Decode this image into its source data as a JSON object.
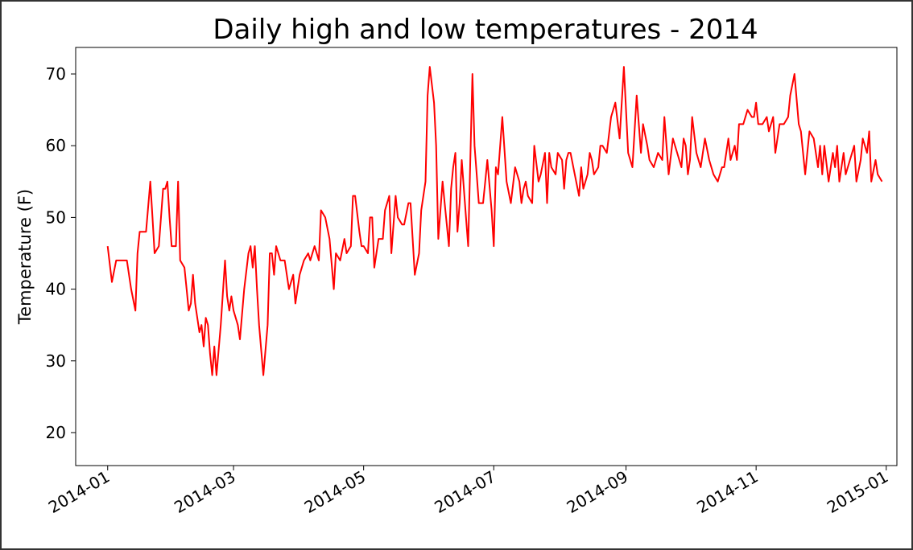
{
  "chart_data": {
    "type": "line",
    "title": "Daily high and low temperatures - 2014",
    "xlabel": "",
    "ylabel": "Temperature (F)",
    "x_ticks": [
      "2014-01",
      "2014-03",
      "2014-05",
      "2014-07",
      "2014-09",
      "2014-11",
      "2015-01"
    ],
    "y_ticks": [
      20,
      30,
      40,
      50,
      60,
      70
    ],
    "xlim": [
      "2013-12-17",
      "2015-01-06"
    ],
    "ylim": [
      15.4,
      73.7
    ],
    "grid": false,
    "fill_between": {
      "color": "#0000ff",
      "alpha": 0.1
    },
    "series": [
      {
        "color": "#ff0000",
        "points": [
          [
            "2014-01-01",
            46
          ],
          [
            "2014-01-03",
            41
          ],
          [
            "2014-01-05",
            44
          ],
          [
            "2014-01-07",
            44
          ],
          [
            "2014-01-10",
            44
          ],
          [
            "2014-01-12",
            40
          ],
          [
            "2014-01-14",
            37
          ],
          [
            "2014-01-15",
            45
          ],
          [
            "2014-01-16",
            48
          ],
          [
            "2014-01-19",
            48
          ],
          [
            "2014-01-21",
            55
          ],
          [
            "2014-01-22",
            50
          ],
          [
            "2014-01-23",
            45
          ],
          [
            "2014-01-25",
            46
          ],
          [
            "2014-01-27",
            54
          ],
          [
            "2014-01-28",
            54
          ],
          [
            "2014-01-29",
            55
          ],
          [
            "2014-01-30",
            50
          ],
          [
            "2014-01-31",
            46
          ],
          [
            "2014-02-02",
            46
          ],
          [
            "2014-02-03",
            55
          ],
          [
            "2014-02-04",
            44
          ],
          [
            "2014-02-06",
            43
          ],
          [
            "2014-02-07",
            40
          ],
          [
            "2014-02-08",
            37
          ],
          [
            "2014-02-09",
            38
          ],
          [
            "2014-02-10",
            42
          ],
          [
            "2014-02-11",
            38
          ],
          [
            "2014-02-13",
            34
          ],
          [
            "2014-02-14",
            35
          ],
          [
            "2014-02-15",
            32
          ],
          [
            "2014-02-16",
            36
          ],
          [
            "2014-02-17",
            35
          ],
          [
            "2014-02-18",
            31
          ],
          [
            "2014-02-19",
            28
          ],
          [
            "2014-02-20",
            32
          ],
          [
            "2014-02-21",
            28
          ],
          [
            "2014-02-23",
            35
          ],
          [
            "2014-02-25",
            44
          ],
          [
            "2014-02-26",
            39
          ],
          [
            "2014-02-27",
            37
          ],
          [
            "2014-02-28",
            39
          ],
          [
            "2014-03-01",
            37
          ],
          [
            "2014-03-03",
            35
          ],
          [
            "2014-03-04",
            33
          ],
          [
            "2014-03-06",
            40
          ],
          [
            "2014-03-08",
            45
          ],
          [
            "2014-03-09",
            46
          ],
          [
            "2014-03-10",
            43
          ],
          [
            "2014-03-11",
            46
          ],
          [
            "2014-03-12",
            40
          ],
          [
            "2014-03-13",
            35
          ],
          [
            "2014-03-15",
            28
          ],
          [
            "2014-03-17",
            35
          ],
          [
            "2014-03-18",
            45
          ],
          [
            "2014-03-19",
            45
          ],
          [
            "2014-03-20",
            42
          ],
          [
            "2014-03-21",
            46
          ],
          [
            "2014-03-22",
            45
          ],
          [
            "2014-03-23",
            44
          ],
          [
            "2014-03-25",
            44
          ],
          [
            "2014-03-27",
            40
          ],
          [
            "2014-03-29",
            42
          ],
          [
            "2014-03-30",
            38
          ],
          [
            "2014-04-01",
            42
          ],
          [
            "2014-04-03",
            44
          ],
          [
            "2014-04-05",
            45
          ],
          [
            "2014-04-06",
            44
          ],
          [
            "2014-04-08",
            46
          ],
          [
            "2014-04-09",
            45
          ],
          [
            "2014-04-10",
            44
          ],
          [
            "2014-04-11",
            51
          ],
          [
            "2014-04-13",
            50
          ],
          [
            "2014-04-15",
            47
          ],
          [
            "2014-04-17",
            40
          ],
          [
            "2014-04-18",
            45
          ],
          [
            "2014-04-20",
            44
          ],
          [
            "2014-04-22",
            47
          ],
          [
            "2014-04-23",
            45
          ],
          [
            "2014-04-25",
            46
          ],
          [
            "2014-04-26",
            53
          ],
          [
            "2014-04-27",
            53
          ],
          [
            "2014-04-29",
            48
          ],
          [
            "2014-04-30",
            46
          ],
          [
            "2014-05-01",
            46
          ],
          [
            "2014-05-03",
            45
          ],
          [
            "2014-05-04",
            50
          ],
          [
            "2014-05-05",
            50
          ],
          [
            "2014-05-06",
            43
          ],
          [
            "2014-05-08",
            47
          ],
          [
            "2014-05-10",
            47
          ],
          [
            "2014-05-11",
            51
          ],
          [
            "2014-05-13",
            53
          ],
          [
            "2014-05-14",
            45
          ],
          [
            "2014-05-16",
            53
          ],
          [
            "2014-05-17",
            50
          ],
          [
            "2014-05-19",
            49
          ],
          [
            "2014-05-20",
            49
          ],
          [
            "2014-05-22",
            52
          ],
          [
            "2014-05-23",
            52
          ],
          [
            "2014-05-25",
            42
          ],
          [
            "2014-05-27",
            45
          ],
          [
            "2014-05-28",
            51
          ],
          [
            "2014-05-30",
            55
          ],
          [
            "2014-05-31",
            67
          ],
          [
            "2014-06-01",
            71
          ],
          [
            "2014-06-03",
            66
          ],
          [
            "2014-06-04",
            60
          ],
          [
            "2014-06-05",
            47
          ],
          [
            "2014-06-07",
            55
          ],
          [
            "2014-06-08",
            52
          ],
          [
            "2014-06-10",
            46
          ],
          [
            "2014-06-11",
            54
          ],
          [
            "2014-06-12",
            57
          ],
          [
            "2014-06-13",
            59
          ],
          [
            "2014-06-14",
            48
          ],
          [
            "2014-06-15",
            52
          ],
          [
            "2014-06-16",
            58
          ],
          [
            "2014-06-18",
            50
          ],
          [
            "2014-06-19",
            46
          ],
          [
            "2014-06-21",
            70
          ],
          [
            "2014-06-22",
            60
          ],
          [
            "2014-06-23",
            56
          ],
          [
            "2014-06-24",
            52
          ],
          [
            "2014-06-26",
            52
          ],
          [
            "2014-06-27",
            55
          ],
          [
            "2014-06-28",
            58
          ],
          [
            "2014-06-30",
            51
          ],
          [
            "2014-07-01",
            46
          ],
          [
            "2014-07-02",
            57
          ],
          [
            "2014-07-03",
            56
          ],
          [
            "2014-07-05",
            64
          ],
          [
            "2014-07-07",
            55
          ],
          [
            "2014-07-09",
            52
          ],
          [
            "2014-07-11",
            57
          ],
          [
            "2014-07-13",
            55
          ],
          [
            "2014-07-14",
            52
          ],
          [
            "2014-07-15",
            54
          ],
          [
            "2014-07-16",
            55
          ],
          [
            "2014-07-17",
            53
          ],
          [
            "2014-07-19",
            52
          ],
          [
            "2014-07-20",
            60
          ],
          [
            "2014-07-22",
            55
          ],
          [
            "2014-07-23",
            56
          ],
          [
            "2014-07-25",
            59
          ],
          [
            "2014-07-26",
            52
          ],
          [
            "2014-07-27",
            59
          ],
          [
            "2014-07-28",
            57
          ],
          [
            "2014-07-30",
            56
          ],
          [
            "2014-07-31",
            59
          ],
          [
            "2014-08-02",
            58
          ],
          [
            "2014-08-03",
            54
          ],
          [
            "2014-08-04",
            58
          ],
          [
            "2014-08-05",
            59
          ],
          [
            "2014-08-06",
            59
          ],
          [
            "2014-08-08",
            56
          ],
          [
            "2014-08-10",
            53
          ],
          [
            "2014-08-11",
            57
          ],
          [
            "2014-08-12",
            54
          ],
          [
            "2014-08-14",
            56
          ],
          [
            "2014-08-15",
            59
          ],
          [
            "2014-08-16",
            58
          ],
          [
            "2014-08-17",
            56
          ],
          [
            "2014-08-19",
            57
          ],
          [
            "2014-08-20",
            60
          ],
          [
            "2014-08-21",
            60
          ],
          [
            "2014-08-23",
            59
          ],
          [
            "2014-08-25",
            64
          ],
          [
            "2014-08-27",
            66
          ],
          [
            "2014-08-29",
            61
          ],
          [
            "2014-08-31",
            71
          ],
          [
            "2014-09-02",
            59
          ],
          [
            "2014-09-04",
            57
          ],
          [
            "2014-09-06",
            67
          ],
          [
            "2014-09-08",
            59
          ],
          [
            "2014-09-09",
            63
          ],
          [
            "2014-09-11",
            60
          ],
          [
            "2014-09-12",
            58
          ],
          [
            "2014-09-14",
            57
          ],
          [
            "2014-09-16",
            59
          ],
          [
            "2014-09-18",
            58
          ],
          [
            "2014-09-19",
            64
          ],
          [
            "2014-09-21",
            56
          ],
          [
            "2014-09-23",
            61
          ],
          [
            "2014-09-25",
            59
          ],
          [
            "2014-09-27",
            57
          ],
          [
            "2014-09-28",
            61
          ],
          [
            "2014-09-29",
            60
          ],
          [
            "2014-09-30",
            56
          ],
          [
            "2014-10-01",
            58
          ],
          [
            "2014-10-02",
            64
          ],
          [
            "2014-10-04",
            59
          ],
          [
            "2014-10-06",
            57
          ],
          [
            "2014-10-08",
            61
          ],
          [
            "2014-10-10",
            58
          ],
          [
            "2014-10-12",
            56
          ],
          [
            "2014-10-14",
            55
          ],
          [
            "2014-10-16",
            57
          ],
          [
            "2014-10-17",
            57
          ],
          [
            "2014-10-19",
            61
          ],
          [
            "2014-10-20",
            58
          ],
          [
            "2014-10-22",
            60
          ],
          [
            "2014-10-23",
            58
          ],
          [
            "2014-10-24",
            63
          ],
          [
            "2014-10-26",
            63
          ],
          [
            "2014-10-28",
            65
          ],
          [
            "2014-10-30",
            64
          ],
          [
            "2014-10-31",
            64
          ],
          [
            "2014-11-01",
            66
          ],
          [
            "2014-11-02",
            63
          ],
          [
            "2014-11-04",
            63
          ],
          [
            "2014-11-06",
            64
          ],
          [
            "2014-11-07",
            62
          ],
          [
            "2014-11-09",
            64
          ],
          [
            "2014-11-10",
            59
          ],
          [
            "2014-11-12",
            63
          ],
          [
            "2014-11-14",
            63
          ],
          [
            "2014-11-16",
            64
          ],
          [
            "2014-11-17",
            67
          ],
          [
            "2014-11-19",
            70
          ],
          [
            "2014-11-21",
            63
          ],
          [
            "2014-11-22",
            62
          ],
          [
            "2014-11-24",
            56
          ],
          [
            "2014-11-25",
            59
          ],
          [
            "2014-11-26",
            62
          ],
          [
            "2014-11-28",
            61
          ],
          [
            "2014-11-30",
            57
          ],
          [
            "2014-12-01",
            60
          ],
          [
            "2014-12-02",
            56
          ],
          [
            "2014-12-03",
            60
          ],
          [
            "2014-12-05",
            55
          ],
          [
            "2014-12-07",
            59
          ],
          [
            "2014-12-08",
            57
          ],
          [
            "2014-12-09",
            60
          ],
          [
            "2014-12-10",
            55
          ],
          [
            "2014-12-12",
            59
          ],
          [
            "2014-12-13",
            56
          ],
          [
            "2014-12-15",
            58
          ],
          [
            "2014-12-17",
            60
          ],
          [
            "2014-12-18",
            55
          ],
          [
            "2014-12-20",
            58
          ],
          [
            "2014-12-21",
            61
          ],
          [
            "2014-12-23",
            59
          ],
          [
            "2014-12-24",
            62
          ],
          [
            "2014-12-25",
            55
          ],
          [
            "2014-12-27",
            58
          ],
          [
            "2014-12-28",
            56
          ],
          [
            "2014-12-30",
            55
          ]
        ]
      },
      {
        "color": "#0000ff",
        "points": []
      }
    ]
  }
}
